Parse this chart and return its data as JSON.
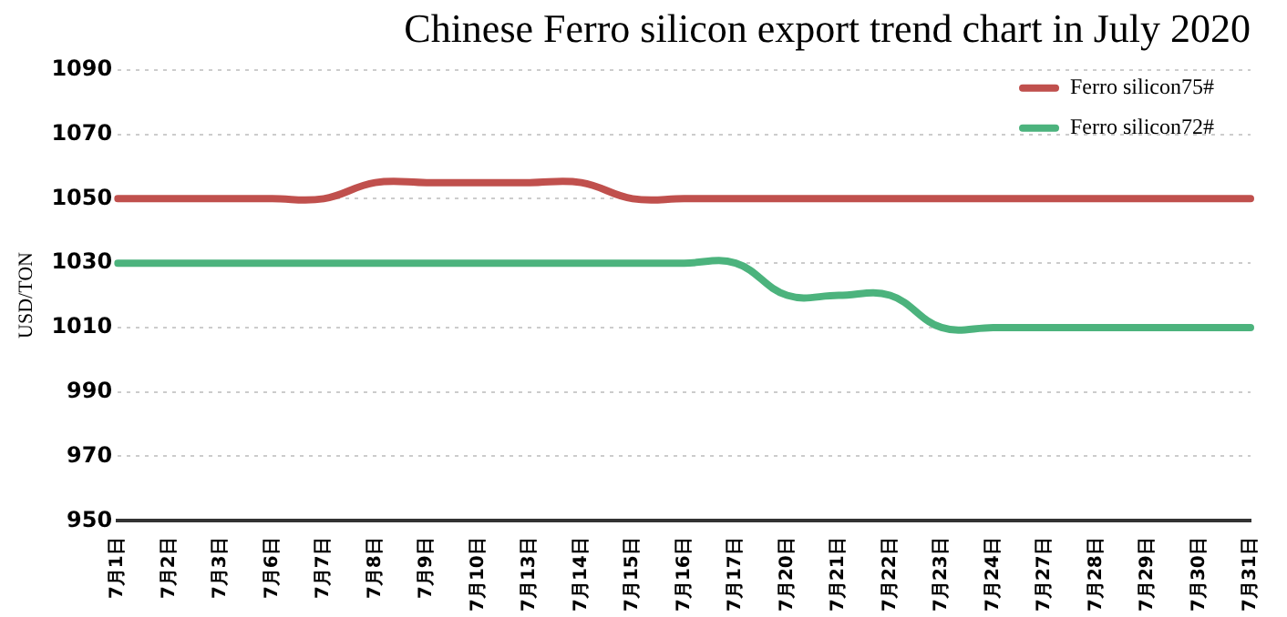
{
  "chart_data": {
    "type": "line",
    "title": "Chinese Ferro silicon export trend chart in July 2020",
    "ylabel": "USD/TON",
    "categories": [
      "7月1日",
      "7月2日",
      "7月3日",
      "7月6日",
      "7月7日",
      "7月8日",
      "7月9日",
      "7月10日",
      "7月13日",
      "7月14日",
      "7月15日",
      "7月16日",
      "7月17日",
      "7月20日",
      "7月21日",
      "7月22日",
      "7月23日",
      "7月24日",
      "7月27日",
      "7月28日",
      "7月29日",
      "7月30日",
      "7月31日"
    ],
    "series": [
      {
        "name": "Ferro silicon75#",
        "color": "#c0504d",
        "values": [
          1050,
          1050,
          1050,
          1050,
          1050,
          1055,
          1055,
          1055,
          1055,
          1055,
          1050,
          1050,
          1050,
          1050,
          1050,
          1050,
          1050,
          1050,
          1050,
          1050,
          1050,
          1050,
          1050
        ]
      },
      {
        "name": "Ferro silicon72#",
        "color": "#4cb37d",
        "values": [
          1030,
          1030,
          1030,
          1030,
          1030,
          1030,
          1030,
          1030,
          1030,
          1030,
          1030,
          1030,
          1030,
          1020,
          1020,
          1020,
          1010,
          1010,
          1010,
          1010,
          1010,
          1010,
          1010
        ]
      }
    ],
    "ylim": [
      950,
      1090
    ],
    "yticks": [
      950,
      970,
      990,
      1010,
      1030,
      1050,
      1070,
      1090
    ],
    "grid": "y",
    "legend": "top right",
    "marker": "none",
    "line_style": "solid"
  }
}
